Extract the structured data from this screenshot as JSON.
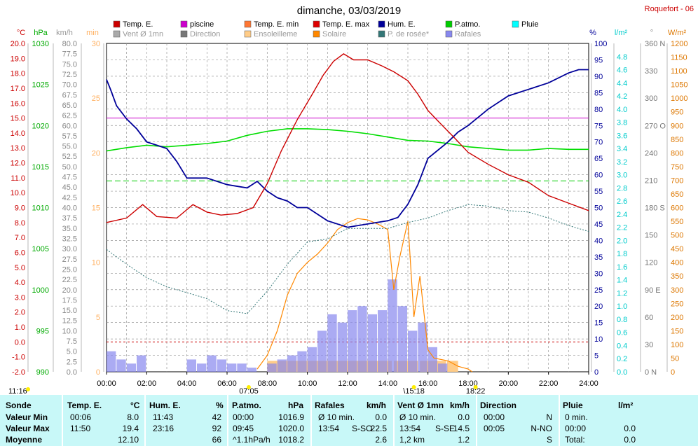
{
  "header": {
    "title": "dimanche, 03/03/2019",
    "station": "Roquefort - 06"
  },
  "legend": [
    {
      "label": "Temp. E.",
      "color": "#cc0000"
    },
    {
      "label": "piscine",
      "color": "#cc00cc"
    },
    {
      "label": "Temp. E. min",
      "color": "#ff7733"
    },
    {
      "label": "Temp. E. max",
      "color": "#dd0000"
    },
    {
      "label": "Hum. E.",
      "color": "#000099"
    },
    {
      "label": "P.atmo.",
      "color": "#00cc00"
    },
    {
      "label": "Pluie",
      "color": "#00ffff"
    },
    {
      "label": "Vent Ø 1mn",
      "color": "#aaaaaa"
    },
    {
      "label": "Direction",
      "color": "#777777"
    },
    {
      "label": "Ensoleilleme",
      "color": "#ffcc88"
    },
    {
      "label": "Solaire",
      "color": "#ff8800"
    },
    {
      "label": "P. de rosée*",
      "color": "#337777"
    },
    {
      "label": "Rafales",
      "color": "#8888ee"
    }
  ],
  "units": {
    "temp": "°C",
    "press": "hPa",
    "wind": "km/h",
    "min": "min",
    "hum": "%",
    "rain": "l/m²",
    "dir": "°",
    "solar": "W/m²"
  },
  "axes": {
    "temp_ticks": [
      "20.0",
      "19.0",
      "18.0",
      "17.0",
      "16.0",
      "15.0",
      "14.0",
      "13.0",
      "12.0",
      "11.0",
      "10.0",
      "9.0",
      "8.0",
      "7.0",
      "6.0",
      "5.0",
      "4.0",
      "3.0",
      "2.0",
      "1.0",
      "0.0",
      "-1.0",
      "-2.0"
    ],
    "press_ticks": [
      "1030",
      "1025",
      "1020",
      "1015",
      "1010",
      "1005",
      "1000",
      "995",
      "990"
    ],
    "wind_ticks": [
      "80.0",
      "77.5",
      "75.0",
      "72.5",
      "70.0",
      "67.5",
      "65.0",
      "62.5",
      "60.0",
      "57.5",
      "55.0",
      "52.5",
      "50.0",
      "47.5",
      "45.0",
      "42.5",
      "40.0",
      "37.5",
      "35.0",
      "32.5",
      "30.0",
      "27.5",
      "25.0",
      "22.5",
      "20.0",
      "17.5",
      "15.0",
      "12.5",
      "10.0",
      "7.5",
      "5.0",
      "2.5",
      "0.0"
    ],
    "min_ticks": [
      "30",
      "25",
      "20",
      "15",
      "10",
      "5",
      "0"
    ],
    "hum_ticks": [
      "100",
      "95",
      "90",
      "85",
      "80",
      "75",
      "70",
      "65",
      "60",
      "55",
      "50",
      "45",
      "40",
      "35",
      "30",
      "25",
      "20",
      "15",
      "10",
      "5",
      "0"
    ],
    "rain_ticks": [
      "4.8",
      "4.6",
      "4.4",
      "4.2",
      "4.0",
      "3.8",
      "3.6",
      "3.4",
      "3.2",
      "3.0",
      "2.8",
      "2.6",
      "2.4",
      "2.2",
      "2.0",
      "1.8",
      "1.6",
      "1.4",
      "1.2",
      "1.0",
      "0.8",
      "0.6",
      "0.4",
      "0.2",
      "0.0"
    ],
    "dir_ticks": [
      "360 N",
      "330",
      "300",
      "270 O",
      "240",
      "210",
      "180 S",
      "150",
      "120",
      "90 E",
      "60",
      "30",
      "0 N"
    ],
    "solar_ticks": [
      "1200",
      "1150",
      "1100",
      "1050",
      "1000",
      "950",
      "900",
      "850",
      "800",
      "750",
      "700",
      "650",
      "600",
      "550",
      "500",
      "450",
      "400",
      "350",
      "300",
      "250",
      "200",
      "150",
      "100",
      "50",
      "0"
    ],
    "x_ticks": [
      "00:00",
      "02:00",
      "04:00",
      "06:00",
      "08:00",
      "10:00",
      "12:00",
      "14:00",
      "16:00",
      "18:00",
      "20:00",
      "22:00",
      "24:00"
    ]
  },
  "sun": {
    "daylength": "11:16",
    "sunrise": "07:05",
    "noon": "\\15:18",
    "sunset": "18:22"
  },
  "chart_data": {
    "type": "line",
    "x_unit": "hours",
    "x_range": [
      0,
      24
    ],
    "series": [
      {
        "name": "Temp. E.",
        "axis": "°C",
        "x": [
          0,
          1,
          1.8,
          2.5,
          3.5,
          4.3,
          5,
          5.7,
          6.5,
          7.3,
          8.0,
          8.7,
          9.5,
          10.2,
          10.8,
          11.3,
          11.8,
          12.3,
          13,
          13.7,
          14.3,
          15,
          15.5,
          16,
          16.5,
          17.3,
          18,
          19,
          20,
          21,
          22,
          23,
          24
        ],
        "y": [
          8.0,
          8.3,
          9.2,
          8.4,
          8.3,
          9.2,
          8.7,
          8.5,
          8.6,
          9.0,
          10.6,
          12.8,
          14.9,
          16.5,
          17.9,
          18.8,
          19.3,
          18.9,
          18.9,
          18.5,
          18.1,
          17.5,
          16.6,
          15.5,
          14.8,
          13.7,
          12.7,
          11.9,
          11.2,
          10.7,
          9.8,
          9.3,
          8.8
        ]
      },
      {
        "name": "Hum. E.",
        "axis": "%",
        "x": [
          0,
          0.2,
          0.5,
          1,
          1.5,
          2,
          2.5,
          3,
          3.5,
          4,
          5,
          6,
          7,
          7.5,
          8,
          8.5,
          9,
          9.5,
          10,
          11,
          12,
          13,
          14,
          14.5,
          15,
          15.5,
          16,
          17,
          17.5,
          18,
          19,
          20,
          21,
          22,
          23,
          23.5,
          24
        ],
        "y": [
          89,
          86,
          81,
          77,
          74,
          70,
          69,
          68,
          64,
          59,
          59,
          57,
          56,
          58,
          55,
          53,
          52,
          50,
          50,
          46,
          44,
          45,
          46,
          47,
          51,
          57,
          65,
          70,
          73,
          75,
          80,
          84,
          86,
          88,
          91,
          92,
          92
        ]
      },
      {
        "name": "P.atmo.",
        "axis": "hPa",
        "x": [
          0,
          1,
          2,
          3,
          4,
          5,
          6,
          7,
          8,
          9,
          10,
          11,
          12,
          13,
          14,
          15,
          16,
          17,
          18,
          19,
          20,
          21,
          22,
          23,
          24
        ],
        "y": [
          1016.9,
          1017.3,
          1017.6,
          1017.4,
          1017.6,
          1017.8,
          1018.1,
          1018.8,
          1019.3,
          1019.6,
          1019.6,
          1019.5,
          1019.3,
          1019.0,
          1018.6,
          1018.2,
          1018.1,
          1017.8,
          1017.4,
          1017.2,
          1017.0,
          1017.0,
          1017.2,
          1017.1,
          1017.1
        ]
      },
      {
        "name": "P. de rosée*",
        "axis": "°C",
        "x": [
          0,
          1,
          2,
          3,
          4,
          5,
          6,
          7,
          8,
          9,
          10,
          11,
          12,
          13,
          14,
          15,
          16,
          17,
          18,
          19,
          20,
          21,
          22,
          23,
          24
        ],
        "y": [
          6.2,
          5.2,
          4.3,
          3.7,
          3.3,
          2.9,
          2.1,
          1.9,
          3.4,
          5.2,
          6.7,
          6.9,
          7.6,
          7.6,
          7.6,
          8.0,
          8.3,
          8.8,
          9.2,
          9.1,
          8.8,
          8.7,
          8.3,
          7.8,
          7.4
        ]
      },
      {
        "name": "Solaire",
        "axis": "W/m²",
        "x": [
          7.5,
          8,
          8.5,
          9,
          9.5,
          10,
          10.5,
          11,
          11.5,
          12,
          12.5,
          13,
          13.5,
          14,
          14.3,
          14.6,
          15,
          15.3,
          15.6,
          16,
          16.3,
          17,
          17.5,
          18,
          18.2
        ],
        "y": [
          10,
          60,
          150,
          280,
          360,
          400,
          430,
          470,
          520,
          545,
          560,
          555,
          540,
          520,
          300,
          420,
          550,
          200,
          350,
          80,
          50,
          40,
          20,
          10,
          0
        ]
      },
      {
        "name": "Rafales",
        "axis": "km/h",
        "x": [
          0,
          0.5,
          1,
          1.5,
          2,
          2.5,
          3,
          3.5,
          4,
          4.5,
          5,
          5.5,
          6,
          6.5,
          7,
          7.5,
          8,
          8.5,
          9,
          9.5,
          10,
          10.5,
          11,
          11.5,
          12,
          12.5,
          13,
          13.5,
          14,
          14.5,
          15,
          15.5,
          16,
          16.5,
          17
        ],
        "y": [
          5,
          3,
          2,
          4,
          0,
          0,
          0,
          0,
          3,
          2,
          4,
          3,
          2,
          2,
          1,
          0,
          2,
          3,
          4,
          5,
          6,
          10,
          14,
          12,
          15,
          16,
          14,
          15,
          22.5,
          16,
          10,
          12,
          6,
          2,
          0
        ]
      }
    ],
    "reference_lines": [
      {
        "name": "piscine",
        "axis": "°C",
        "value": 15.0
      },
      {
        "name": "Pluie",
        "axis": "hPa",
        "value": 1013.25
      }
    ]
  },
  "table": {
    "headers": {
      "sonde": "Sonde",
      "temp": "Temp. E.",
      "temp_u": "°C",
      "hum": "Hum. E.",
      "hum_u": "%",
      "press": "P.atmo.",
      "press_u": "hPa",
      "raf": "Rafales",
      "raf_u": "km/h",
      "vent": "Vent Ø 1mn",
      "vent_u": "km/h",
      "dir": "Direction",
      "pluie": "Pluie",
      "pluie_u": "l/m²"
    },
    "rows": [
      {
        "label": "Valeur Min",
        "t_time": "00:06",
        "t_val": "8.0",
        "h_time": "11:43",
        "h_val": "42",
        "p_time": "00:00",
        "p_val": "1016.9",
        "r_lab": "Ø 10 min.",
        "r_dir": "",
        "r_val": "0.0",
        "v_lab": "Ø 10 min.",
        "v_dir": "",
        "v_val": "0.0",
        "d_time": "00:00",
        "d_val": "N",
        "pl_lab": "0 min.",
        "pl_val": ""
      },
      {
        "label": "Valeur Max",
        "t_time": "11:50",
        "t_val": "19.4",
        "h_time": "23:16",
        "h_val": "92",
        "p_time": "09:45",
        "p_val": "1020.0",
        "r_lab": "13:54",
        "r_dir": "S-SO",
        "r_val": "22.5",
        "v_lab": "13:54",
        "v_dir": "S-SE",
        "v_val": "14.5",
        "d_time": "00:05",
        "d_val": "N-NO",
        "pl_lab": "00:00",
        "pl_val": "0.0"
      },
      {
        "label": "Moyenne",
        "t_time": "",
        "t_val": "12.10",
        "h_time": "",
        "h_val": "66",
        "p_time": "^1.1hPa/h",
        "p_val": "1018.2",
        "r_lab": "",
        "r_dir": "",
        "r_val": "2.6",
        "v_lab": "1,2 km",
        "v_dir": "",
        "v_val": "1.2",
        "d_time": "",
        "d_val": "S",
        "pl_lab": "Total:",
        "pl_val": "0.0"
      }
    ]
  }
}
